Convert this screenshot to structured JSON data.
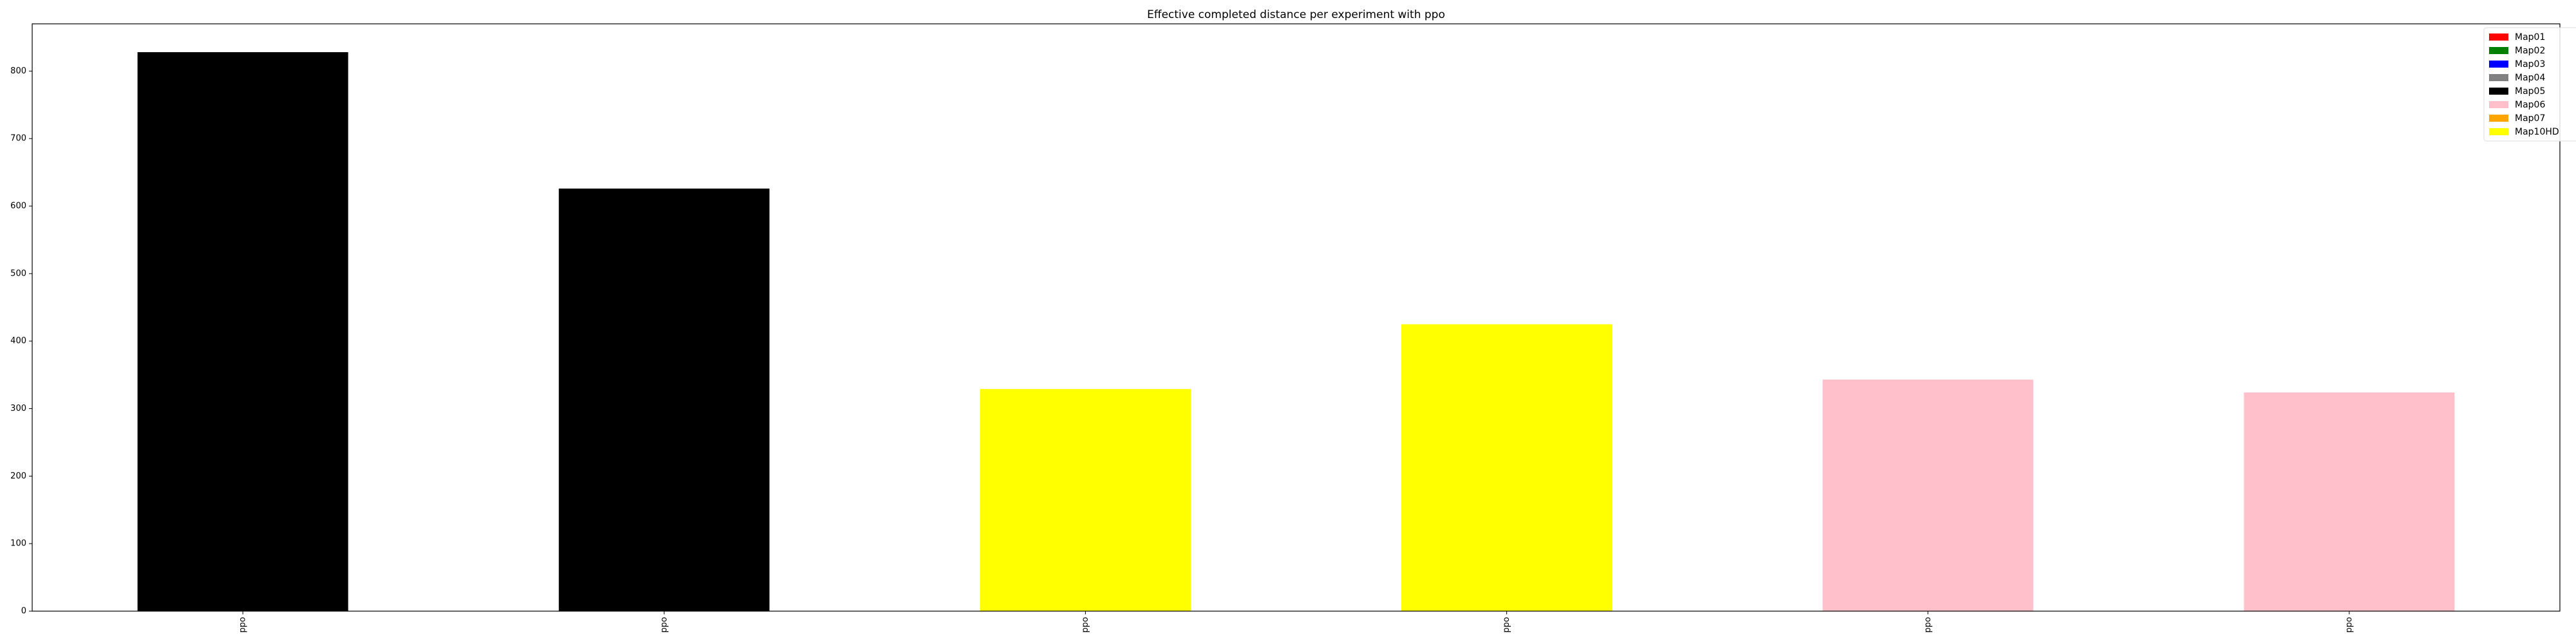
{
  "chart_data": {
    "type": "bar",
    "title": "Effective completed distance per experiment with ppo",
    "xlabel": "",
    "ylabel": "",
    "categories": [
      "ppo",
      "ppo",
      "ppo",
      "ppo",
      "ppo",
      "ppo"
    ],
    "values": [
      828,
      626,
      329,
      425,
      343,
      324
    ],
    "bar_maps": [
      "Map05",
      "Map05",
      "Map10HD",
      "Map10HD",
      "Map06",
      "Map06"
    ],
    "ylim": [
      0,
      870
    ],
    "yticks": [
      0,
      100,
      200,
      300,
      400,
      500,
      600,
      700,
      800
    ],
    "grid": false,
    "legend_position": "top-right",
    "legend": [
      {
        "label": "Map01",
        "color": "#ff0000"
      },
      {
        "label": "Map02",
        "color": "#008000"
      },
      {
        "label": "Map03",
        "color": "#0000ff"
      },
      {
        "label": "Map04",
        "color": "#808080"
      },
      {
        "label": "Map05",
        "color": "#000000"
      },
      {
        "label": "Map06",
        "color": "#ffc0cb"
      },
      {
        "label": "Map07",
        "color": "#ffa500"
      },
      {
        "label": "Map10HD",
        "color": "#ffff00"
      }
    ]
  }
}
